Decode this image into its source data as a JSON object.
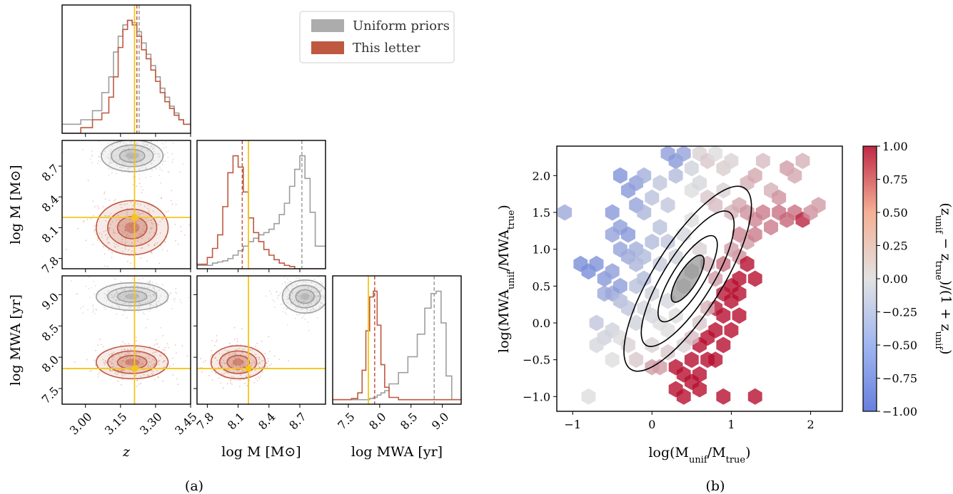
{
  "colors": {
    "uniform": "#9e9e9e",
    "letter": "#bf5840",
    "truth": "#f5c518",
    "cmap_low": "#4d6ad6",
    "cmap_mid": "#dddddd",
    "cmap_high": "#b40426"
  },
  "chart_data": [
    {
      "type": "corner",
      "panel": "(a)",
      "legend": {
        "placement": "top-right",
        "entries": [
          "Uniform priors",
          "This letter"
        ]
      },
      "truth": {
        "z": 3.21,
        "logM": 8.2,
        "logMWA": 7.82
      },
      "params": [
        {
          "label": "z",
          "range": [
            2.9,
            3.45
          ],
          "ticks": [
            "3.00",
            "3.15",
            "3.30",
            "3.45"
          ],
          "tick_values": [
            3.0,
            3.15,
            3.3,
            3.45
          ]
        },
        {
          "label": "log M [M⊙]",
          "range": [
            7.7,
            8.95
          ],
          "ticks": [
            "7.8",
            "8.1",
            "8.4",
            "8.7"
          ],
          "tick_values": [
            7.8,
            8.1,
            8.4,
            8.7
          ]
        },
        {
          "label": "log MWA [yr]",
          "range": [
            7.25,
            9.3
          ],
          "ticks": [
            "7.5",
            "8.0",
            "8.5",
            "9.0"
          ],
          "tick_values": [
            7.5,
            8.0,
            8.5,
            9.0
          ]
        }
      ],
      "marginals": {
        "z": {
          "edges": [
            2.9,
            2.98,
            3.03,
            3.07,
            3.1,
            3.12,
            3.14,
            3.16,
            3.18,
            3.2,
            3.22,
            3.24,
            3.26,
            3.28,
            3.3,
            3.32,
            3.34,
            3.36,
            3.38,
            3.4,
            3.42,
            3.45
          ],
          "uniform": [
            0.08,
            0.12,
            0.2,
            0.36,
            0.5,
            0.72,
            0.86,
            0.96,
            1.0,
            0.98,
            0.9,
            0.8,
            0.7,
            0.6,
            0.5,
            0.4,
            0.32,
            0.24,
            0.18,
            0.12,
            0.08
          ],
          "letter": [
            0.0,
            0.05,
            0.12,
            0.18,
            0.32,
            0.5,
            0.76,
            0.92,
            1.0,
            0.96,
            0.86,
            0.74,
            0.66,
            0.56,
            0.46,
            0.36,
            0.28,
            0.22,
            0.16,
            0.12,
            0.08
          ],
          "median_uniform": 3.23,
          "median_letter": 3.22
        },
        "logM": {
          "edges": [
            7.7,
            7.8,
            7.85,
            7.9,
            7.95,
            8.0,
            8.05,
            8.1,
            8.15,
            8.2,
            8.25,
            8.3,
            8.35,
            8.4,
            8.45,
            8.5,
            8.55,
            8.6,
            8.65,
            8.7,
            8.75,
            8.8,
            8.85,
            8.95
          ],
          "uniform": [
            0.03,
            0.03,
            0.05,
            0.06,
            0.07,
            0.09,
            0.12,
            0.16,
            0.2,
            0.24,
            0.27,
            0.3,
            0.32,
            0.35,
            0.4,
            0.48,
            0.58,
            0.73,
            0.88,
            1.0,
            0.8,
            0.5,
            0.2
          ],
          "letter": [
            0.04,
            0.1,
            0.18,
            0.3,
            0.55,
            0.85,
            1.0,
            0.9,
            0.68,
            0.45,
            0.32,
            0.24,
            0.17,
            0.12,
            0.08,
            0.05,
            0.03,
            0.02,
            0.0,
            0.0,
            0.0,
            0.0,
            0.0
          ],
          "median_uniform": 8.72,
          "median_letter": 8.14
        },
        "logMWA": {
          "edges": [
            7.25,
            7.55,
            7.65,
            7.72,
            7.78,
            7.84,
            7.9,
            7.96,
            8.02,
            8.08,
            8.15,
            8.3,
            8.45,
            8.6,
            8.72,
            8.82,
            8.9,
            8.98,
            9.06,
            9.15,
            9.3
          ],
          "letter": [
            0.04,
            0.05,
            0.1,
            0.3,
            0.65,
            0.95,
            1.0,
            0.7,
            0.35,
            0.15,
            0.06,
            0.04,
            0.04,
            0.04,
            0.04,
            0.04,
            0.04,
            0.04,
            0.04,
            0.04
          ],
          "uniform": [
            0.04,
            0.04,
            0.04,
            0.04,
            0.04,
            0.05,
            0.06,
            0.08,
            0.1,
            0.12,
            0.18,
            0.28,
            0.42,
            0.62,
            0.85,
            0.98,
            1.0,
            0.72,
            0.25,
            0.04
          ],
          "median_uniform": 8.87,
          "median_letter": 7.92
        }
      },
      "posteriors_2d": [
        {
          "x": "z",
          "y": "logM",
          "uniform_center": [
            3.2,
            8.8
          ],
          "uniform_spread": [
            0.06,
            0.07
          ],
          "letter_center": [
            3.2,
            8.1
          ],
          "letter_spread": [
            0.07,
            0.12
          ]
        },
        {
          "x": "z",
          "y": "logMWA",
          "uniform_center": [
            3.2,
            8.97
          ],
          "uniform_spread": [
            0.07,
            0.1
          ],
          "letter_center": [
            3.2,
            7.92
          ],
          "letter_spread": [
            0.07,
            0.12
          ]
        },
        {
          "x": "logM",
          "y": "logMWA",
          "uniform_center": [
            8.75,
            8.97
          ],
          "uniform_spread": [
            0.1,
            0.12
          ],
          "letter_center": [
            8.1,
            7.92
          ],
          "letter_spread": [
            0.12,
            0.12
          ]
        }
      ]
    },
    {
      "type": "heatmap",
      "subtype": "hexbin",
      "panel": "(b)",
      "xlabel": "log(M_unif/M_true)",
      "ylabel": "log(MWA_unif/MWA_true)",
      "colorbar_label": "(z_unif − z_true)/(1 + z_unif)",
      "xlim": [
        -1.2,
        2.4
      ],
      "ylim": [
        -1.2,
        2.4
      ],
      "xticks": [
        "−1",
        "0",
        "1",
        "2"
      ],
      "xtick_values": [
        -1,
        0,
        1,
        2
      ],
      "yticks": [
        "−1.0",
        "−0.5",
        "0.0",
        "0.5",
        "1.0",
        "1.5",
        "2.0"
      ],
      "ytick_values": [
        -1.0,
        -0.5,
        0.0,
        0.5,
        1.0,
        1.5,
        2.0
      ],
      "clim": [
        -1.0,
        1.0
      ],
      "colorbar_ticks": [
        "−1.00",
        "−0.75",
        "−0.50",
        "−0.25",
        "0.00",
        "0.25",
        "0.50",
        "0.75",
        "1.00"
      ],
      "colorbar_tick_values": [
        -1.0,
        -0.75,
        -0.5,
        -0.25,
        0.0,
        0.25,
        0.5,
        0.75,
        1.0
      ],
      "cells": [
        [
          -1.1,
          1.5,
          -0.45
        ],
        [
          -0.9,
          0.8,
          -0.7
        ],
        [
          -0.8,
          0.7,
          -0.7
        ],
        [
          -0.7,
          0.8,
          -0.65
        ],
        [
          -0.6,
          0.6,
          -0.6
        ],
        [
          -0.5,
          0.7,
          -0.55
        ],
        [
          -0.5,
          0.4,
          -0.5
        ],
        [
          -0.4,
          0.5,
          -0.55
        ],
        [
          -0.6,
          0.4,
          -0.45
        ],
        [
          -0.4,
          0.3,
          -0.3
        ],
        [
          -0.3,
          0.2,
          -0.2
        ],
        [
          -0.5,
          1.5,
          -0.6
        ],
        [
          -0.4,
          1.3,
          -0.55
        ],
        [
          -0.3,
          1.2,
          -0.6
        ],
        [
          -0.4,
          1.0,
          -0.5
        ],
        [
          -0.3,
          0.9,
          -0.45
        ],
        [
          -0.5,
          1.2,
          -0.5
        ],
        [
          -0.2,
          1.0,
          -0.4
        ],
        [
          -0.2,
          0.8,
          -0.35
        ],
        [
          -0.1,
          0.6,
          -0.3
        ],
        [
          -0.2,
          0.5,
          -0.25
        ],
        [
          -0.4,
          2.0,
          -0.65
        ],
        [
          -0.3,
          1.8,
          -0.6
        ],
        [
          -0.2,
          1.9,
          -0.55
        ],
        [
          -0.1,
          2.0,
          -0.4
        ],
        [
          -0.2,
          1.6,
          -0.5
        ],
        [
          -0.1,
          1.5,
          -0.35
        ],
        [
          0.0,
          1.7,
          -0.25
        ],
        [
          0.1,
          1.9,
          -0.2
        ],
        [
          0.2,
          1.6,
          -0.2
        ],
        [
          0.1,
          1.3,
          -0.25
        ],
        [
          0.2,
          2.3,
          -0.55
        ],
        [
          0.3,
          2.2,
          -0.6
        ],
        [
          0.4,
          2.3,
          -0.5
        ],
        [
          0.3,
          2.0,
          -0.3
        ],
        [
          0.5,
          2.1,
          -0.1
        ],
        [
          0.6,
          2.3,
          0.05
        ],
        [
          0.7,
          2.2,
          0.1
        ],
        [
          0.8,
          2.3,
          0.0
        ],
        [
          0.9,
          2.1,
          0.08
        ],
        [
          1.0,
          2.2,
          0.05
        ],
        [
          0.5,
          1.8,
          0.0
        ],
        [
          0.6,
          1.9,
          -0.05
        ],
        [
          0.7,
          1.7,
          0.1
        ],
        [
          0.8,
          1.6,
          0.15
        ],
        [
          0.9,
          1.8,
          0.05
        ],
        [
          1.0,
          1.5,
          0.2
        ],
        [
          1.1,
          1.6,
          0.25
        ],
        [
          1.2,
          1.5,
          0.35
        ],
        [
          1.3,
          1.4,
          0.4
        ],
        [
          1.4,
          1.5,
          0.45
        ],
        [
          1.5,
          1.3,
          0.45
        ],
        [
          1.6,
          1.5,
          0.5
        ],
        [
          1.7,
          1.4,
          0.55
        ],
        [
          1.8,
          1.5,
          0.5
        ],
        [
          1.9,
          1.4,
          0.85
        ],
        [
          2.0,
          1.5,
          0.35
        ],
        [
          2.1,
          1.6,
          0.3
        ],
        [
          1.2,
          1.9,
          0.2
        ],
        [
          1.3,
          2.0,
          0.25
        ],
        [
          1.4,
          2.2,
          0.15
        ],
        [
          1.7,
          2.1,
          0.3
        ],
        [
          1.8,
          2.0,
          0.25
        ],
        [
          1.9,
          2.2,
          0.2
        ],
        [
          1.5,
          1.8,
          0.2
        ],
        [
          1.6,
          1.7,
          0.35
        ],
        [
          1.1,
          1.2,
          0.4
        ],
        [
          1.2,
          1.1,
          0.3
        ],
        [
          1.3,
          1.2,
          0.45
        ],
        [
          1.1,
          0.9,
          0.35
        ],
        [
          1.0,
          1.0,
          0.3
        ],
        [
          1.2,
          0.8,
          0.95
        ],
        [
          1.1,
          0.6,
          0.95
        ],
        [
          1.3,
          0.6,
          0.95
        ],
        [
          1.0,
          0.5,
          0.95
        ],
        [
          0.9,
          0.4,
          0.9
        ],
        [
          1.1,
          0.4,
          0.95
        ],
        [
          1.0,
          0.3,
          0.95
        ],
        [
          0.8,
          0.2,
          0.9
        ],
        [
          0.9,
          0.1,
          0.95
        ],
        [
          1.1,
          0.1,
          0.95
        ],
        [
          0.8,
          -0.1,
          0.95
        ],
        [
          1.0,
          -0.1,
          0.95
        ],
        [
          0.7,
          -0.2,
          0.95
        ],
        [
          0.9,
          -0.3,
          0.95
        ],
        [
          0.6,
          -0.3,
          0.95
        ],
        [
          0.7,
          -0.5,
          0.95
        ],
        [
          0.5,
          -0.5,
          0.95
        ],
        [
          0.8,
          -0.5,
          0.95
        ],
        [
          0.6,
          -0.7,
          0.95
        ],
        [
          0.4,
          -0.7,
          0.95
        ],
        [
          0.3,
          -0.6,
          0.95
        ],
        [
          0.5,
          -0.8,
          0.95
        ],
        [
          0.3,
          -0.9,
          0.95
        ],
        [
          0.6,
          -0.9,
          0.95
        ],
        [
          0.9,
          -1.0,
          0.95
        ],
        [
          1.3,
          -1.0,
          0.95
        ],
        [
          0.4,
          -1.0,
          0.95
        ],
        [
          0.1,
          -0.6,
          0.3
        ],
        [
          0.0,
          -0.6,
          0.3
        ],
        [
          -0.2,
          -0.5,
          0.1
        ],
        [
          -0.5,
          -0.5,
          0.0
        ],
        [
          -0.6,
          -0.2,
          -0.1
        ],
        [
          -0.7,
          -0.3,
          -0.05
        ],
        [
          -0.8,
          -1.0,
          0.0
        ],
        [
          -0.7,
          0.0,
          -0.2
        ],
        [
          -0.5,
          -0.1,
          -0.1
        ],
        [
          -0.4,
          -0.2,
          0.0
        ],
        [
          -0.3,
          -0.3,
          0.05
        ],
        [
          -0.2,
          0.0,
          -0.1
        ],
        [
          0.0,
          -0.3,
          0.05
        ],
        [
          0.2,
          -0.4,
          0.1
        ],
        [
          0.4,
          -0.3,
          0.05
        ],
        [
          0.5,
          -0.2,
          0.15
        ],
        [
          0.6,
          0.0,
          0.1
        ],
        [
          0.7,
          0.2,
          0.2
        ],
        [
          0.3,
          0.1,
          0.0
        ],
        [
          0.2,
          0.3,
          -0.05
        ],
        [
          0.4,
          0.5,
          0.0
        ],
        [
          0.5,
          0.7,
          -0.05
        ],
        [
          0.3,
          0.9,
          -0.1
        ],
        [
          0.1,
          0.8,
          -0.15
        ],
        [
          0.0,
          0.4,
          -0.1
        ],
        [
          -0.1,
          0.2,
          -0.05
        ],
        [
          0.6,
          1.0,
          0.05
        ],
        [
          0.7,
          0.8,
          0.2
        ],
        [
          0.8,
          0.6,
          0.3
        ],
        [
          0.9,
          0.8,
          0.5
        ],
        [
          0.4,
          1.2,
          -0.05
        ],
        [
          0.5,
          1.4,
          0.0
        ],
        [
          0.2,
          1.1,
          -0.2
        ],
        [
          0.0,
          1.1,
          -0.3
        ],
        [
          -0.1,
          0.9,
          -0.3
        ],
        [
          0.1,
          0.0,
          0.0
        ],
        [
          0.2,
          -0.1,
          0.0
        ],
        [
          0.0,
          0.1,
          -0.05
        ]
      ],
      "density_contours": "black contours enclosing the densest region, elongated from about (0.1, 0.0) to (0.9, 1.5)"
    }
  ]
}
